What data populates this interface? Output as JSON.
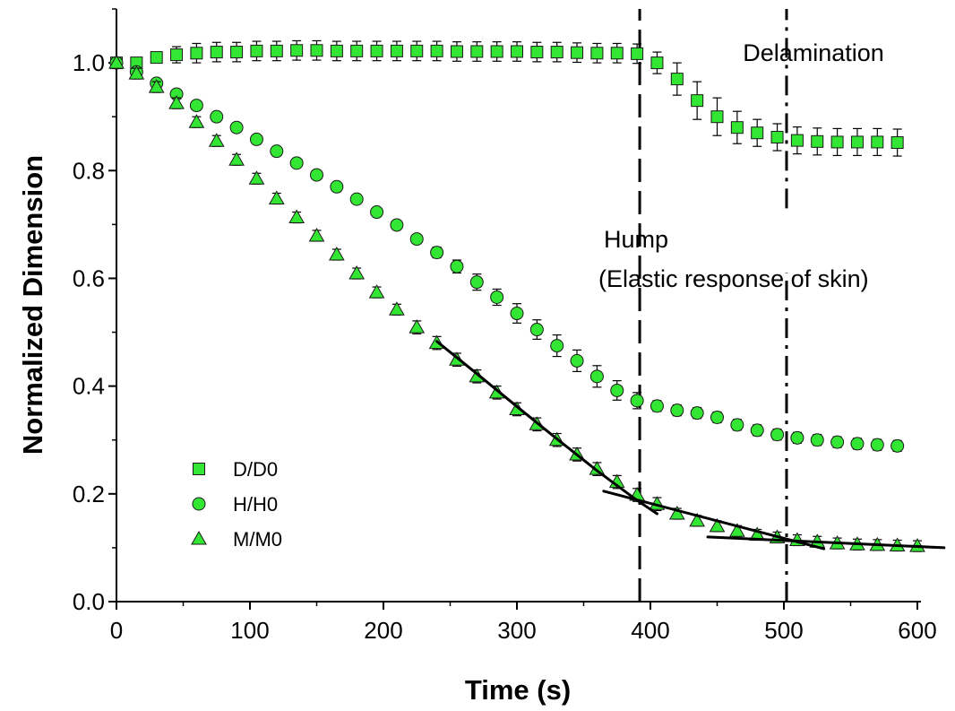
{
  "colors": {
    "marker_fill": "#33e633",
    "marker_stroke": "#1a1a1a",
    "hump": "#b3121b",
    "axis": "#000000"
  },
  "chart_data": {
    "type": "scatter",
    "title": "",
    "xlabel": "Time (s)",
    "ylabel": "Normalized Dimension",
    "xlim": [
      0,
      600
    ],
    "ylim": [
      0,
      1.1
    ],
    "xticks": [
      "0",
      "100",
      "200",
      "300",
      "400",
      "500",
      "600"
    ],
    "yticks": [
      "0.0",
      "0.2",
      "0.4",
      "0.6",
      "0.8",
      "1.0"
    ],
    "legend_position": "bottom-left",
    "series": [
      {
        "name": "D/D0",
        "marker": "square",
        "x": [
          0,
          15,
          30,
          45,
          60,
          75,
          90,
          105,
          120,
          135,
          150,
          165,
          180,
          195,
          210,
          225,
          240,
          255,
          270,
          285,
          300,
          315,
          330,
          345,
          360,
          375,
          390,
          405,
          420,
          435,
          450,
          465,
          480,
          495,
          510,
          525,
          540,
          555,
          570,
          585
        ],
        "y": [
          1.0,
          1.0,
          1.01,
          1.015,
          1.018,
          1.02,
          1.02,
          1.022,
          1.022,
          1.023,
          1.023,
          1.022,
          1.022,
          1.022,
          1.022,
          1.022,
          1.022,
          1.021,
          1.021,
          1.021,
          1.021,
          1.02,
          1.02,
          1.019,
          1.018,
          1.018,
          1.017,
          1.0,
          0.97,
          0.93,
          0.9,
          0.88,
          0.87,
          0.862,
          0.856,
          0.854,
          0.853,
          0.853,
          0.853,
          0.852
        ],
        "err": [
          0,
          0.005,
          0.01,
          0.015,
          0.018,
          0.018,
          0.018,
          0.018,
          0.018,
          0.018,
          0.018,
          0.018,
          0.018,
          0.018,
          0.018,
          0.018,
          0.018,
          0.018,
          0.018,
          0.018,
          0.018,
          0.018,
          0.018,
          0.018,
          0.018,
          0.018,
          0.018,
          0.02,
          0.03,
          0.035,
          0.035,
          0.03,
          0.025,
          0.025,
          0.025,
          0.025,
          0.025,
          0.025,
          0.025,
          0.025
        ]
      },
      {
        "name": "H/H0",
        "marker": "circle",
        "x": [
          0,
          15,
          30,
          45,
          60,
          75,
          90,
          105,
          120,
          135,
          150,
          165,
          180,
          195,
          210,
          225,
          240,
          255,
          270,
          285,
          300,
          315,
          330,
          345,
          360,
          375,
          390,
          405,
          420,
          435,
          450,
          465,
          480,
          495,
          510,
          525,
          540,
          555,
          570,
          585
        ],
        "y": [
          1.0,
          0.983,
          0.962,
          0.942,
          0.921,
          0.9,
          0.88,
          0.858,
          0.836,
          0.814,
          0.792,
          0.77,
          0.747,
          0.723,
          0.699,
          0.673,
          0.648,
          0.622,
          0.593,
          0.565,
          0.535,
          0.505,
          0.475,
          0.447,
          0.418,
          0.392,
          0.373,
          0.363,
          0.355,
          0.35,
          0.342,
          0.328,
          0.318,
          0.31,
          0.304,
          0.3,
          0.296,
          0.293,
          0.291,
          0.289
        ],
        "err": [
          0,
          0.008,
          0.008,
          0.008,
          0.008,
          0.008,
          0.008,
          0.008,
          0.008,
          0.008,
          0.008,
          0.008,
          0.008,
          0.008,
          0.008,
          0.008,
          0.01,
          0.012,
          0.015,
          0.015,
          0.018,
          0.018,
          0.02,
          0.02,
          0.02,
          0.018,
          0.015,
          0.01,
          0.01,
          0.01,
          0.01,
          0.01,
          0.01,
          0.01,
          0.01,
          0.01,
          0.01,
          0.01,
          0.01,
          0.01
        ]
      },
      {
        "name": "M/M0",
        "marker": "triangle",
        "x": [
          0,
          15,
          30,
          45,
          60,
          75,
          90,
          105,
          120,
          135,
          150,
          165,
          180,
          195,
          210,
          225,
          240,
          255,
          270,
          285,
          300,
          315,
          330,
          345,
          360,
          375,
          390,
          405,
          420,
          435,
          450,
          465,
          480,
          495,
          510,
          525,
          540,
          555,
          570,
          585,
          600
        ],
        "y": [
          1.0,
          0.98,
          0.955,
          0.925,
          0.89,
          0.855,
          0.82,
          0.785,
          0.748,
          0.713,
          0.679,
          0.644,
          0.609,
          0.574,
          0.542,
          0.509,
          0.48,
          0.449,
          0.418,
          0.388,
          0.357,
          0.329,
          0.3,
          0.273,
          0.246,
          0.222,
          0.198,
          0.181,
          0.163,
          0.15,
          0.14,
          0.131,
          0.124,
          0.119,
          0.114,
          0.111,
          0.108,
          0.106,
          0.105,
          0.104,
          0.103
        ],
        "err": [
          0,
          0.01,
          0.01,
          0.01,
          0.01,
          0.01,
          0.01,
          0.01,
          0.01,
          0.01,
          0.01,
          0.01,
          0.01,
          0.01,
          0.01,
          0.012,
          0.012,
          0.012,
          0.012,
          0.012,
          0.012,
          0.012,
          0.012,
          0.012,
          0.012,
          0.012,
          0.012,
          0.012,
          0.01,
          0.01,
          0.01,
          0.01,
          0.01,
          0.01,
          0.01,
          0.01,
          0.01,
          0.01,
          0.01,
          0.01,
          0.01
        ]
      }
    ],
    "fit_lines": [
      {
        "x": [
          240,
          270,
          300,
          330,
          360,
          390,
          405
        ],
        "y": [
          0.483,
          0.423,
          0.362,
          0.302,
          0.243,
          0.188,
          0.163
        ]
      },
      {
        "x": [
          365,
          530
        ],
        "y": [
          0.205,
          0.098
        ]
      },
      {
        "x": [
          443,
          620
        ],
        "y": [
          0.12,
          0.1
        ]
      }
    ],
    "vlines": [
      {
        "x": 392,
        "y_from": 0,
        "y_to": 1.1
      },
      {
        "x": 502,
        "y_from": 0,
        "y_to": 1.1,
        "gap": [
          0.61,
          0.73
        ]
      }
    ],
    "annotations": [
      {
        "id": "delamination",
        "text": "Delamination",
        "x": 583,
        "y": 1.015
      },
      {
        "id": "hump",
        "text": "Hump",
        "x": 650,
        "y": 0.657
      },
      {
        "id": "elastic",
        "text": "(Elastic response of skin)",
        "x": 845,
        "y": 0.598
      }
    ]
  }
}
